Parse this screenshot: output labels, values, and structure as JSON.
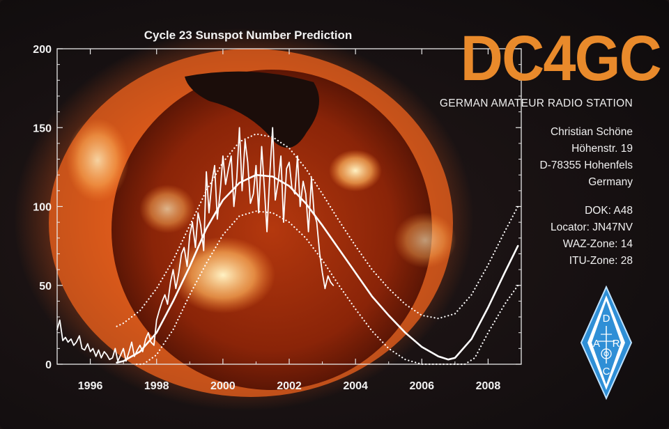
{
  "chart_data": {
    "type": "line",
    "title": "Cycle 23 Sunspot Number Prediction",
    "xlabel": "",
    "ylabel": "",
    "xlim": [
      1995,
      2009
    ],
    "ylim": [
      0,
      200
    ],
    "x_ticks": [
      "1996",
      "1998",
      "2000",
      "2002",
      "2004",
      "2006",
      "2008"
    ],
    "y_ticks": [
      "0",
      "50",
      "100",
      "150",
      "200"
    ],
    "grid": false,
    "series": [
      {
        "role": "observed monthly sunspot number",
        "color": "#ffffff",
        "x": [
          1995.0,
          1995.08,
          1995.17,
          1995.25,
          1995.33,
          1995.42,
          1995.5,
          1995.58,
          1995.67,
          1995.75,
          1995.83,
          1995.92,
          1996.0,
          1996.08,
          1996.17,
          1996.25,
          1996.33,
          1996.42,
          1996.5,
          1996.58,
          1996.67,
          1996.75,
          1996.83,
          1996.92,
          1997.0,
          1997.08,
          1997.17,
          1997.25,
          1997.33,
          1997.42,
          1997.5,
          1997.58,
          1997.67,
          1997.75,
          1997.83,
          1997.92,
          1998.0,
          1998.08,
          1998.17,
          1998.25,
          1998.33,
          1998.42,
          1998.5,
          1998.58,
          1998.67,
          1998.75,
          1998.83,
          1998.92,
          1999.0,
          1999.08,
          1999.17,
          1999.25,
          1999.33,
          1999.42,
          1999.5,
          1999.58,
          1999.67,
          1999.75,
          1999.83,
          1999.92,
          2000.0,
          2000.08,
          2000.17,
          2000.25,
          2000.33,
          2000.42,
          2000.5,
          2000.58,
          2000.67,
          2000.75,
          2000.83,
          2000.92,
          2001.0,
          2001.08,
          2001.17,
          2001.25,
          2001.33,
          2001.42,
          2001.5,
          2001.58,
          2001.67,
          2001.75,
          2001.83,
          2001.92,
          2002.0,
          2002.08,
          2002.17,
          2002.25,
          2002.33,
          2002.42,
          2002.5,
          2002.58,
          2002.67,
          2002.75,
          2002.83,
          2002.92,
          2003.0,
          2003.08,
          2003.17,
          2003.25,
          2003.33
        ],
        "y": [
          22,
          28,
          15,
          17,
          14,
          16,
          12,
          14,
          18,
          10,
          9,
          13,
          8,
          10,
          5,
          9,
          4,
          8,
          6,
          3,
          4,
          10,
          2,
          6,
          10,
          2,
          8,
          14,
          5,
          9,
          12,
          8,
          16,
          20,
          14,
          12,
          28,
          34,
          40,
          44,
          38,
          52,
          60,
          48,
          58,
          70,
          74,
          62,
          82,
          90,
          74,
          96,
          88,
          72,
          122,
          96,
          116,
          126,
          92,
          110,
          132,
          114,
          124,
          132,
          100,
          118,
          150,
          110,
          142,
          128,
          102,
          108,
          126,
          96,
          138,
          112,
          84,
          122,
          150,
          104,
          116,
          132,
          90,
          124,
          128,
          112,
          108,
          132,
          100,
          116,
          108,
          84,
          118,
          96,
          90,
          70,
          58,
          48,
          56,
          52,
          50
        ],
        "style": "solid-jagged"
      },
      {
        "role": "predicted smoothed",
        "color": "#ffffff",
        "x": [
          1996.8,
          1997.0,
          1997.5,
          1998.0,
          1998.5,
          1999.0,
          1999.5,
          2000.0,
          2000.5,
          2001.0,
          2001.5,
          2002.0,
          2002.5,
          2003.0,
          2003.5,
          2004.0,
          2004.5,
          2005.0,
          2005.5,
          2006.0,
          2006.5,
          2006.8,
          2007.0,
          2007.5,
          2008.0,
          2008.5,
          2008.9
        ],
        "y": [
          1,
          2,
          8,
          20,
          40,
          62,
          86,
          104,
          115,
          120,
          119,
          113,
          102,
          88,
          73,
          58,
          43,
          31,
          20,
          11,
          5,
          3,
          4,
          16,
          36,
          58,
          75
        ],
        "style": "solid-smooth"
      },
      {
        "role": "upper bound",
        "color": "#ffffff",
        "x": [
          1996.8,
          1997.0,
          1997.5,
          1998.0,
          1998.5,
          1999.0,
          1999.5,
          2000.0,
          2000.5,
          2001.0,
          2001.5,
          2002.0,
          2002.5,
          2003.0,
          2003.5,
          2004.0,
          2004.5,
          2005.0,
          2005.5,
          2006.0,
          2006.5,
          2007.0,
          2007.5,
          2008.0,
          2008.5,
          2008.9
        ],
        "y": [
          24,
          26,
          34,
          48,
          66,
          88,
          110,
          128,
          141,
          146,
          144,
          137,
          124,
          108,
          91,
          75,
          60,
          48,
          38,
          31,
          29,
          32,
          44,
          63,
          84,
          100
        ],
        "style": "dotted"
      },
      {
        "role": "lower bound",
        "color": "#ffffff",
        "x": [
          1997.4,
          1997.6,
          1998.0,
          1998.5,
          1999.0,
          1999.5,
          2000.0,
          2000.5,
          2001.0,
          2001.5,
          2002.0,
          2002.5,
          2003.0,
          2003.5,
          2004.0,
          2004.5,
          2005.0,
          2005.5,
          2006.0,
          2006.5,
          2007.0,
          2007.3,
          2007.6,
          2008.0,
          2008.5,
          2008.9
        ],
        "y": [
          0,
          0,
          6,
          22,
          44,
          64,
          82,
          94,
          97,
          96,
          90,
          80,
          66,
          50,
          35,
          21,
          10,
          3,
          0,
          0,
          0,
          0,
          4,
          20,
          38,
          50
        ],
        "style": "dotted"
      }
    ],
    "background_image": "sun-x-ray-image"
  },
  "card": {
    "callsign": "DC4GC",
    "subtitle": "GERMAN AMATEUR RADIO STATION",
    "address": [
      "Christian Schöne",
      "Höhenstr. 19",
      "D-78355 Hohenfels",
      "Germany"
    ],
    "info": [
      "DOK: A48",
      "Locator: JN47NV",
      "WAZ-Zone: 14",
      "ITU-Zone: 28"
    ],
    "logo": {
      "letters": [
        "D",
        "A",
        "R",
        "C"
      ],
      "color": "#2f8fd6"
    }
  }
}
